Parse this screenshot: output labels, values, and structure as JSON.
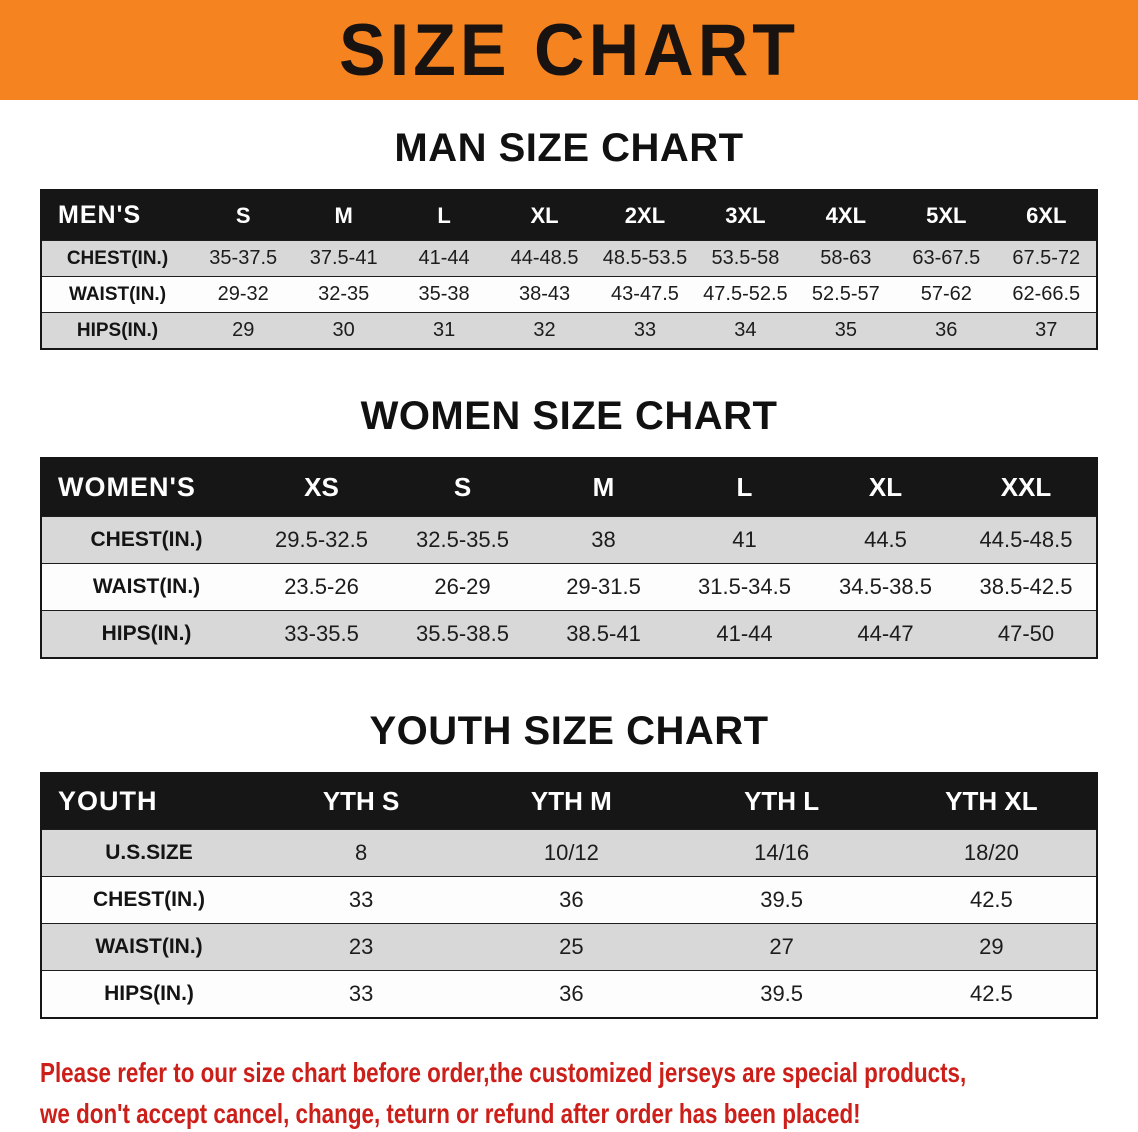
{
  "banner": {
    "title": "SIZE CHART",
    "bg_color": "#f5831f",
    "text_color": "#181310"
  },
  "sections": [
    {
      "id": "men",
      "heading": "MAN SIZE CHART",
      "table": {
        "header": [
          "MEN'S",
          "S",
          "M",
          "L",
          "XL",
          "2XL",
          "3XL",
          "4XL",
          "5XL",
          "6XL"
        ],
        "rows": [
          {
            "label": "CHEST(IN.)",
            "values": [
              "35-37.5",
              "37.5-41",
              "41-44",
              "44-48.5",
              "48.5-53.5",
              "53.5-58",
              "58-63",
              "63-67.5",
              "67.5-72"
            ]
          },
          {
            "label": "WAIST(IN.)",
            "values": [
              "29-32",
              "32-35",
              "35-38",
              "38-43",
              "43-47.5",
              "47.5-52.5",
              "52.5-57",
              "57-62",
              "62-66.5"
            ]
          },
          {
            "label": "HIPS(IN.)",
            "values": [
              "29",
              "30",
              "31",
              "32",
              "33",
              "34",
              "35",
              "36",
              "37"
            ]
          }
        ]
      }
    },
    {
      "id": "women",
      "heading": "WOMEN SIZE CHART",
      "table": {
        "header": [
          "WOMEN'S",
          "XS",
          "S",
          "M",
          "L",
          "XL",
          "XXL"
        ],
        "rows": [
          {
            "label": "CHEST(IN.)",
            "values": [
              "29.5-32.5",
              "32.5-35.5",
              "38",
              "41",
              "44.5",
              "44.5-48.5"
            ]
          },
          {
            "label": "WAIST(IN.)",
            "values": [
              "23.5-26",
              "26-29",
              "29-31.5",
              "31.5-34.5",
              "34.5-38.5",
              "38.5-42.5"
            ]
          },
          {
            "label": "HIPS(IN.)",
            "values": [
              "33-35.5",
              "35.5-38.5",
              "38.5-41",
              "41-44",
              "44-47",
              "47-50"
            ]
          }
        ]
      }
    },
    {
      "id": "youth",
      "heading": "YOUTH SIZE CHART",
      "table": {
        "header": [
          "YOUTH",
          "YTH S",
          "YTH M",
          "YTH L",
          "YTH XL"
        ],
        "rows": [
          {
            "label": "U.S.SIZE",
            "values": [
              "8",
              "10/12",
              "14/16",
              "18/20"
            ]
          },
          {
            "label": "CHEST(IN.)",
            "values": [
              "33",
              "36",
              "39.5",
              "42.5"
            ]
          },
          {
            "label": "WAIST(IN.)",
            "values": [
              "23",
              "25",
              "27",
              "29"
            ]
          },
          {
            "label": "HIPS(IN.)",
            "values": [
              "33",
              "36",
              "39.5",
              "42.5"
            ]
          }
        ]
      }
    }
  ],
  "disclaimer": {
    "line1": "Please refer to our size chart before order,the customized jerseys are special products,",
    "line2": "we don't accept cancel, change, teturn or refund after order has been placed!",
    "color": "#cc1f1a"
  }
}
